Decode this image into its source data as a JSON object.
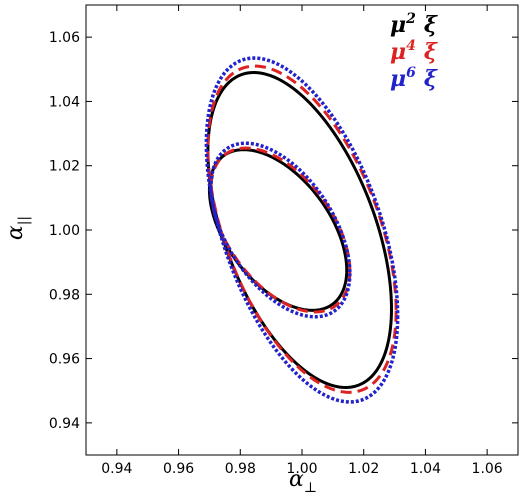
{
  "chart_data": {
    "type": "line",
    "xlabel_base": "α",
    "xlabel_sub": "⊥",
    "ylabel_base": "α",
    "ylabel_sub": "||",
    "xlim": [
      0.93,
      1.07
    ],
    "ylim": [
      0.93,
      1.07
    ],
    "xticks": [
      "0.94",
      "0.96",
      "0.98",
      "1.00",
      "1.02",
      "1.04",
      "1.06"
    ],
    "yticks": [
      "0.94",
      "0.96",
      "0.98",
      "1.00",
      "1.02",
      "1.04",
      "1.06"
    ],
    "grid": false,
    "legend_position": "top-right",
    "series": [
      {
        "name": "μ2 ξ",
        "legend": {
          "base": "μ",
          "power": "2",
          "symbol": "ξ"
        },
        "color": "#000000",
        "style": "solid",
        "contours": [
          {
            "level": "inner",
            "xmin": 0.97,
            "xmax": 1.0145,
            "ymin": 0.975,
            "ymax": 1.025
          },
          {
            "level": "outer",
            "xmin": 0.9695,
            "xmax": 1.029,
            "ymin": 0.951,
            "ymax": 1.049
          }
        ]
      },
      {
        "name": "μ4 ξ",
        "legend": {
          "base": "μ",
          "power": "4",
          "symbol": "ξ"
        },
        "color": "#dd2222",
        "style": "dashed",
        "contours": [
          {
            "level": "inner",
            "xmin": 0.9705,
            "xmax": 1.0155,
            "ymin": 0.9745,
            "ymax": 1.0255
          },
          {
            "level": "outer",
            "xmin": 0.9695,
            "xmax": 1.0305,
            "ymin": 0.9495,
            "ymax": 1.051
          }
        ]
      },
      {
        "name": "μ6 ξ",
        "legend": {
          "base": "μ",
          "power": "6",
          "symbol": "ξ"
        },
        "color": "#2222cc",
        "style": "dotted",
        "contours": [
          {
            "level": "inner",
            "xmin": 0.9705,
            "xmax": 1.0155,
            "ymin": 0.973,
            "ymax": 1.027
          },
          {
            "level": "outer",
            "xmin": 0.969,
            "xmax": 1.031,
            "ymin": 0.9465,
            "ymax": 1.0535
          }
        ]
      }
    ]
  }
}
